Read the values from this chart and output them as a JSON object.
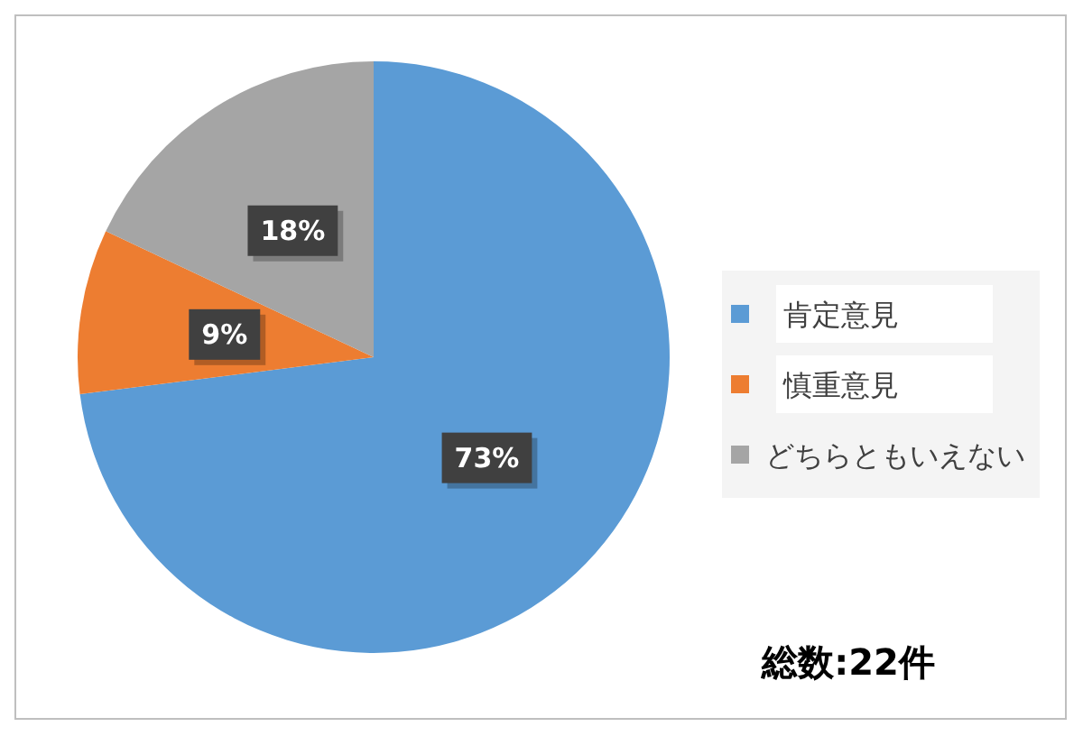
{
  "chart_data": {
    "type": "pie",
    "categories": [
      "肯定意見",
      "慎重意見",
      "どちらともいえない"
    ],
    "values": [
      73,
      9,
      18
    ],
    "colors": [
      "#5b9bd5",
      "#ed7d31",
      "#a5a5a5"
    ],
    "value_labels": [
      "73%",
      "9%",
      "18%"
    ],
    "legend": "right",
    "annotations": [
      "総数:22件"
    ]
  }
}
